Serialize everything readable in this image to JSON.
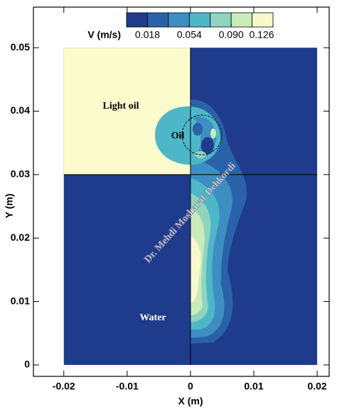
{
  "chart_data": {
    "type": "contour",
    "xlabel": "X (m)",
    "ylabel": "Y (m)",
    "xlim": [
      -0.0248,
      0.0219
    ],
    "ylim": [
      -0.0018,
      0.0564
    ],
    "xticks": [
      -0.02,
      -0.01,
      0,
      0.01,
      0.02
    ],
    "yticks": [
      0,
      0.01,
      0.02,
      0.03,
      0.04,
      0.05
    ],
    "background_color": "#1f3b8c",
    "light_oil_color": "#fbfbcc",
    "colorbar": {
      "label": "V (m/s)",
      "levels": [
        0,
        0.018,
        0.036,
        0.054,
        0.072,
        0.09,
        0.108,
        0.126
      ],
      "colors": [
        "#1f3b8c",
        "#2a62a9",
        "#3d8fc1",
        "#4db7c8",
        "#8fd4bf",
        "#c9ebb9",
        "#f8f8cb"
      ],
      "ticks": [
        0.018,
        0.054,
        {
          "value": 0.09,
          "label": "0.090"
        },
        0.126
      ]
    },
    "region_labels": [
      "Light oil",
      "Oil",
      "Water"
    ],
    "watermark": "Dr. Mehdi Mosharaf-Dehkordi"
  }
}
